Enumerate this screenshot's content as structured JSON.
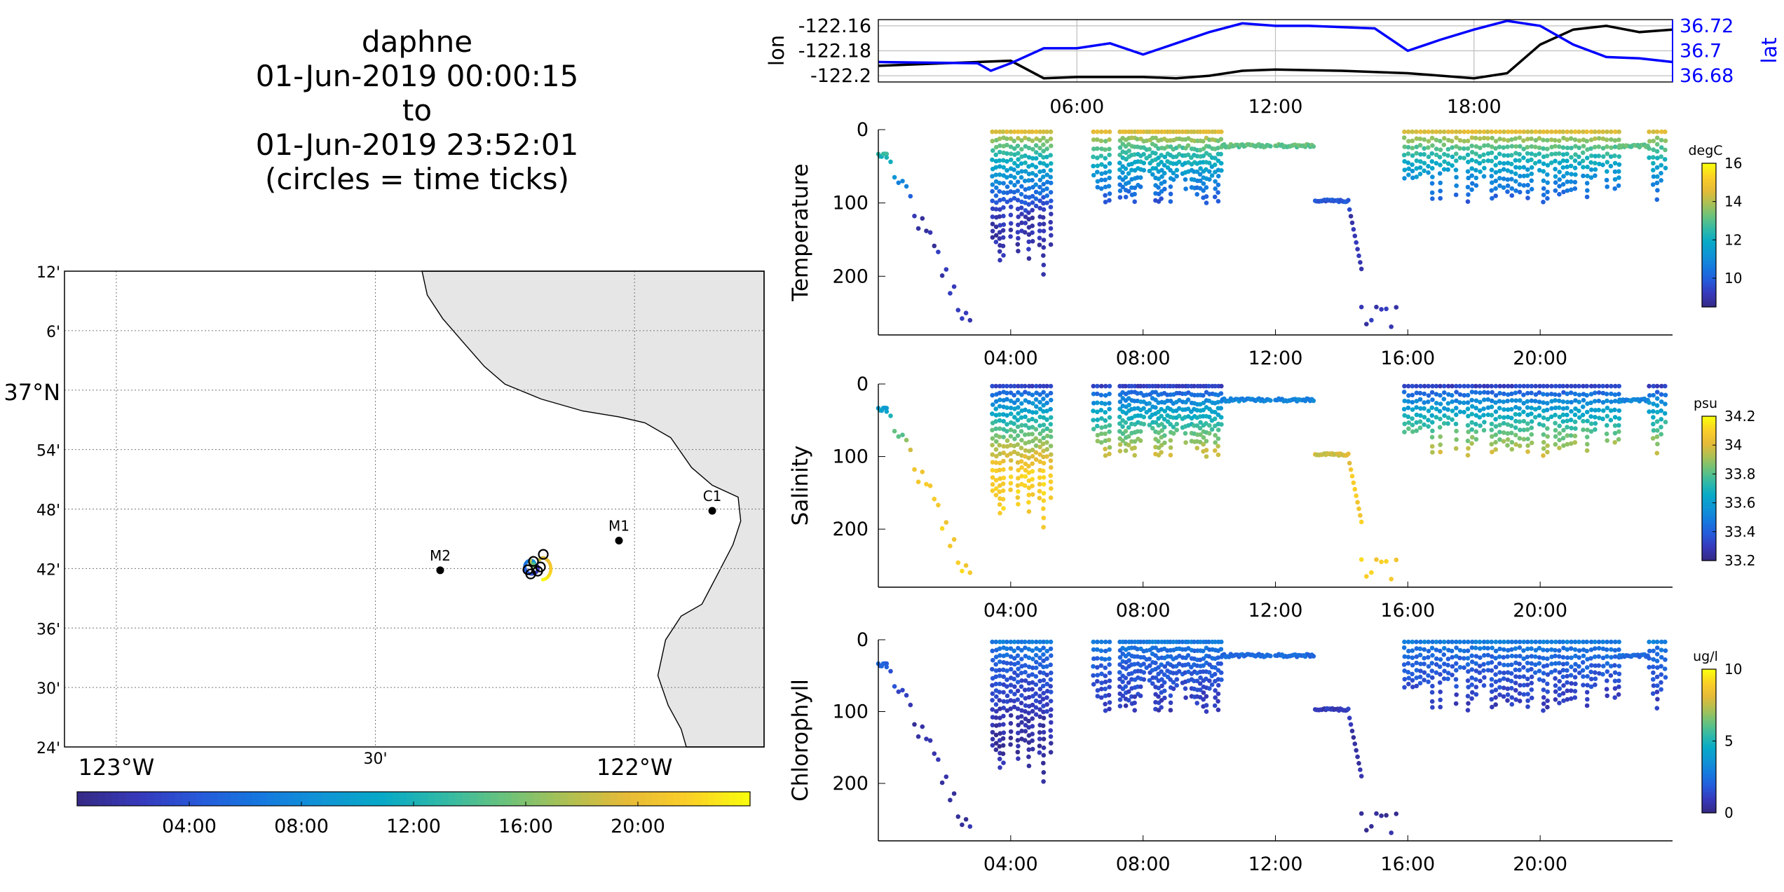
{
  "title_lines": [
    "daphne",
    "01-Jun-2019 00:00:15",
    "to",
    "01-Jun-2019 23:52:01",
    "(circles = time ticks)"
  ],
  "colors": {
    "land": "#e6e6e6",
    "lon_line": "#000000",
    "lat_line": "#0000ff",
    "lat_axis": "#0000ff",
    "grid": "#bfbfbf",
    "station": "#000000"
  },
  "colormap": "parula",
  "map": {
    "lat_ticks": [
      "12'",
      "6'",
      "37°N",
      "54'",
      "48'",
      "42'",
      "36'",
      "30'",
      "24'"
    ],
    "lon_ticks": [
      "123°W",
      "30'",
      "122°W"
    ],
    "lat_range": [
      36.4,
      37.2
    ],
    "lon_range": [
      -123.1,
      -121.75
    ],
    "stations": [
      {
        "name": "M2",
        "lon": -122.375,
        "lat": 36.697
      },
      {
        "name": "M1",
        "lon": -122.03,
        "lat": 36.747
      },
      {
        "name": "C1",
        "lon": -121.85,
        "lat": 36.797
      }
    ],
    "track_center": {
      "lon": -122.195,
      "lat": 36.705
    },
    "time_colorbar_ticks": [
      "04:00",
      "08:00",
      "12:00",
      "16:00",
      "20:00"
    ]
  },
  "chart_data": [
    {
      "type": "line",
      "name": "position-timeseries",
      "ylabel": "lon",
      "ylabel_right": "lat",
      "x_ticks": [
        "06:00",
        "12:00",
        "18:00"
      ],
      "yticks": [
        "-122.16",
        "-122.18",
        "-122.2"
      ],
      "yticks_right": [
        "36.72",
        "36.7",
        "36.68"
      ],
      "ylim": [
        -122.205,
        -122.155
      ],
      "ylim_right": [
        36.675,
        36.725
      ],
      "series": [
        {
          "name": "lon",
          "x": [
            0,
            2,
            4,
            5,
            6,
            8,
            9,
            10,
            11,
            12,
            14,
            16,
            18,
            19,
            20,
            21,
            22,
            23,
            24
          ],
          "y": [
            -122.192,
            -122.19,
            -122.188,
            -122.202,
            -122.201,
            -122.201,
            -122.202,
            -122.2,
            -122.196,
            -122.195,
            -122.196,
            -122.198,
            -122.202,
            -122.198,
            -122.175,
            -122.163,
            -122.16,
            -122.165,
            -122.163
          ]
        },
        {
          "name": "lat",
          "x": [
            0,
            3,
            3.4,
            4,
            5,
            6,
            7,
            8,
            9,
            10,
            11,
            12,
            13,
            15,
            16,
            17,
            18,
            19,
            20,
            21,
            22,
            23,
            24
          ],
          "y": [
            36.691,
            36.69,
            36.684,
            36.69,
            36.702,
            36.702,
            36.706,
            36.697,
            36.706,
            36.715,
            36.722,
            36.72,
            36.72,
            36.718,
            36.7,
            36.709,
            36.717,
            36.724,
            36.72,
            36.705,
            36.695,
            36.694,
            36.691
          ]
        }
      ]
    },
    {
      "type": "scatter",
      "name": "temperature-section",
      "ylabel": "Temperature",
      "unit": "degC",
      "clim": [
        8.5,
        16
      ],
      "colorbar_ticks": [
        "16",
        "14",
        "12",
        "10"
      ],
      "yticks": [
        "0",
        "100",
        "200"
      ],
      "ylim": [
        0,
        280
      ],
      "x_ticks": [
        "04:00",
        "08:00",
        "12:00",
        "16:00",
        "20:00"
      ],
      "features": {
        "surface": 15,
        "deep": 9
      }
    },
    {
      "type": "scatter",
      "name": "salinity-section",
      "ylabel": "Salinity",
      "unit": "psu",
      "clim": [
        33.2,
        34.2
      ],
      "colorbar_ticks": [
        "34.2",
        "34",
        "33.8",
        "33.6",
        "33.4",
        "33.2"
      ],
      "yticks": [
        "0",
        "100",
        "200"
      ],
      "ylim": [
        0,
        280
      ],
      "x_ticks": [
        "04:00",
        "08:00",
        "12:00",
        "16:00",
        "20:00"
      ],
      "features": {
        "surface": 33.25,
        "deep": 34.1
      }
    },
    {
      "type": "scatter",
      "name": "chlorophyll-section",
      "ylabel": "Chlorophyll",
      "unit": "ug/l",
      "clim": [
        0,
        10
      ],
      "colorbar_ticks": [
        "10",
        "5",
        "0"
      ],
      "yticks": [
        "0",
        "100",
        "200"
      ],
      "ylim": [
        0,
        280
      ],
      "x_ticks": [
        "04:00",
        "08:00",
        "12:00",
        "16:00",
        "20:00"
      ],
      "features": {
        "surface": 3,
        "deep": 0.5
      }
    }
  ]
}
